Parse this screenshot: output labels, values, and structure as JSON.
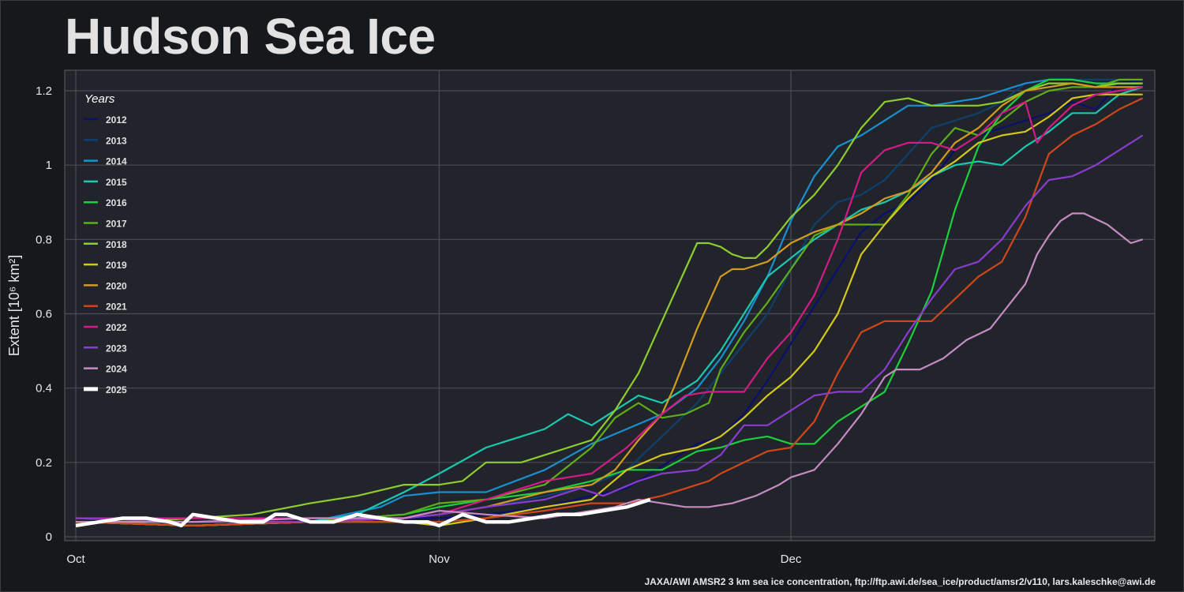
{
  "title": "Hudson Sea Ice",
  "credit": "JAXA/AWI AMSR2 3 km sea ice concentration, ftp://ftp.awi.de/sea_ice/product/amsr2/v110, lars.kaleschke@awi.de",
  "colors": {
    "background": "#16191c",
    "plot_background": "#21252b",
    "grid": "#4a4d52"
  },
  "chart_data": {
    "type": "line",
    "title": "Hudson Sea Ice",
    "xlabel": "",
    "ylabel": "Extent [10⁶ km²]",
    "x_unit": "day index (0 = Oct 1)",
    "xlim": [
      -1,
      92
    ],
    "ylim": [
      0,
      1.25
    ],
    "x_ticks": [
      {
        "day": 0,
        "label": "Oct"
      },
      {
        "day": 31,
        "label": "Nov"
      },
      {
        "day": 61,
        "label": "Dec"
      }
    ],
    "y_ticks": [
      {
        "value": 0,
        "label": "0"
      },
      {
        "value": 0.2,
        "label": "0.2"
      },
      {
        "value": 0.4,
        "label": "0.4"
      },
      {
        "value": 0.6,
        "label": "0.6"
      },
      {
        "value": 0.8,
        "label": "0.8"
      },
      {
        "value": 1.0,
        "label": "1"
      },
      {
        "value": 1.2,
        "label": "1.2"
      }
    ],
    "grid": true,
    "legend": {
      "title": "Years",
      "position": "top-left"
    },
    "series": [
      {
        "name": "2012",
        "color": "#0b0f6e",
        "x": [
          0,
          10,
          20,
          28,
          31,
          35,
          40,
          44,
          47,
          50,
          53,
          55,
          57,
          59,
          61,
          63,
          65,
          67,
          69,
          71,
          73,
          75,
          77,
          79,
          81,
          83,
          85,
          87,
          89,
          91
        ],
        "y": [
          0.04,
          0.04,
          0.04,
          0.05,
          0.05,
          0.06,
          0.08,
          0.11,
          0.13,
          0.19,
          0.25,
          0.27,
          0.33,
          0.42,
          0.52,
          0.62,
          0.72,
          0.82,
          0.87,
          0.9,
          0.96,
          1.04,
          1.08,
          1.1,
          1.12,
          1.14,
          1.17,
          1.15,
          1.22,
          1.23
        ]
      },
      {
        "name": "2013",
        "color": "#0f3f6f",
        "x": [
          0,
          10,
          20,
          28,
          31,
          35,
          40,
          44,
          47,
          50,
          53,
          55,
          57,
          59,
          61,
          63,
          65,
          67,
          69,
          71,
          73,
          75,
          77,
          79,
          81,
          83,
          85,
          87,
          89,
          91
        ],
        "y": [
          0.05,
          0.04,
          0.05,
          0.05,
          0.06,
          0.08,
          0.11,
          0.14,
          0.18,
          0.27,
          0.36,
          0.44,
          0.52,
          0.6,
          0.72,
          0.84,
          0.9,
          0.92,
          0.96,
          1.03,
          1.1,
          1.12,
          1.14,
          1.17,
          1.22,
          1.23,
          1.23,
          1.23,
          1.23,
          1.23
        ]
      },
      {
        "name": "2014",
        "color": "#1a8fd0",
        "x": [
          0,
          10,
          20,
          26,
          28,
          31,
          35,
          40,
          44,
          47,
          50,
          53,
          55,
          57,
          59,
          61,
          63,
          65,
          67,
          69,
          71,
          73,
          75,
          77,
          79,
          81,
          83,
          85,
          87,
          89,
          91
        ],
        "y": [
          0.04,
          0.04,
          0.04,
          0.08,
          0.11,
          0.12,
          0.12,
          0.18,
          0.25,
          0.29,
          0.33,
          0.4,
          0.48,
          0.58,
          0.7,
          0.85,
          0.97,
          1.05,
          1.08,
          1.12,
          1.16,
          1.16,
          1.17,
          1.18,
          1.2,
          1.22,
          1.23,
          1.23,
          1.22,
          1.22,
          1.22
        ]
      },
      {
        "name": "2015",
        "color": "#1bc7b0",
        "x": [
          0,
          10,
          20,
          24,
          28,
          31,
          35,
          38,
          40,
          42,
          44,
          46,
          48,
          50,
          53,
          55,
          57,
          59,
          61,
          63,
          65,
          67,
          69,
          71,
          73,
          75,
          77,
          79,
          81,
          83,
          85,
          87,
          89,
          91
        ],
        "y": [
          0.04,
          0.03,
          0.04,
          0.06,
          0.12,
          0.17,
          0.24,
          0.27,
          0.29,
          0.33,
          0.3,
          0.34,
          0.38,
          0.36,
          0.42,
          0.5,
          0.6,
          0.7,
          0.75,
          0.8,
          0.84,
          0.88,
          0.9,
          0.93,
          0.97,
          1.0,
          1.01,
          1.0,
          1.05,
          1.09,
          1.14,
          1.14,
          1.19,
          1.21
        ]
      },
      {
        "name": "2016",
        "color": "#1ad03c",
        "x": [
          0,
          10,
          20,
          28,
          31,
          35,
          40,
          44,
          47,
          50,
          53,
          55,
          57,
          59,
          61,
          63,
          65,
          67,
          69,
          71,
          73,
          75,
          77,
          79,
          81,
          83,
          85,
          87,
          89,
          91
        ],
        "y": [
          0.04,
          0.03,
          0.04,
          0.06,
          0.08,
          0.1,
          0.12,
          0.15,
          0.18,
          0.18,
          0.23,
          0.24,
          0.26,
          0.27,
          0.25,
          0.25,
          0.31,
          0.35,
          0.39,
          0.52,
          0.66,
          0.88,
          1.05,
          1.14,
          1.2,
          1.23,
          1.23,
          1.22,
          1.22,
          1.22
        ]
      },
      {
        "name": "2017",
        "color": "#5fae18",
        "x": [
          0,
          10,
          20,
          28,
          31,
          35,
          40,
          44,
          46,
          48,
          50,
          52,
          54,
          55,
          57,
          59,
          61,
          63,
          65,
          67,
          69,
          71,
          73,
          75,
          77,
          79,
          81,
          83,
          85,
          87,
          89,
          91
        ],
        "y": [
          0.04,
          0.04,
          0.04,
          0.06,
          0.09,
          0.1,
          0.14,
          0.24,
          0.32,
          0.36,
          0.32,
          0.33,
          0.36,
          0.45,
          0.55,
          0.63,
          0.72,
          0.81,
          0.84,
          0.84,
          0.84,
          0.92,
          1.03,
          1.1,
          1.08,
          1.12,
          1.17,
          1.2,
          1.21,
          1.21,
          1.23,
          1.23
        ]
      },
      {
        "name": "2018",
        "color": "#8fcc2e",
        "x": [
          0,
          5,
          10,
          15,
          20,
          24,
          28,
          31,
          33,
          35,
          38,
          40,
          42,
          44,
          46,
          48,
          50,
          52,
          53,
          54,
          55,
          56,
          57,
          58,
          59,
          61,
          63,
          65,
          67,
          69,
          71,
          73,
          75,
          77,
          79,
          81,
          83,
          85,
          87,
          89,
          91
        ],
        "y": [
          0.04,
          0.04,
          0.05,
          0.06,
          0.09,
          0.11,
          0.14,
          0.14,
          0.15,
          0.2,
          0.2,
          0.22,
          0.24,
          0.26,
          0.34,
          0.44,
          0.58,
          0.72,
          0.79,
          0.79,
          0.78,
          0.76,
          0.75,
          0.75,
          0.78,
          0.86,
          0.92,
          1.0,
          1.1,
          1.17,
          1.18,
          1.16,
          1.16,
          1.16,
          1.17,
          1.2,
          1.22,
          1.22,
          1.21,
          1.22,
          1.22
        ]
      },
      {
        "name": "2019",
        "color": "#d7c71a",
        "x": [
          0,
          10,
          20,
          28,
          31,
          35,
          40,
          44,
          47,
          50,
          53,
          55,
          57,
          59,
          61,
          63,
          65,
          67,
          69,
          71,
          73,
          75,
          77,
          79,
          81,
          83,
          85,
          87,
          89,
          91
        ],
        "y": [
          0.04,
          0.03,
          0.04,
          0.04,
          0.03,
          0.05,
          0.08,
          0.1,
          0.18,
          0.22,
          0.24,
          0.27,
          0.32,
          0.38,
          0.43,
          0.5,
          0.6,
          0.76,
          0.84,
          0.91,
          0.97,
          1.01,
          1.06,
          1.08,
          1.09,
          1.13,
          1.18,
          1.19,
          1.19,
          1.19
        ]
      },
      {
        "name": "2020",
        "color": "#d39c1e",
        "x": [
          0,
          10,
          20,
          28,
          31,
          35,
          40,
          44,
          46,
          48,
          50,
          51,
          52,
          53,
          54,
          55,
          56,
          57,
          59,
          61,
          63,
          65,
          67,
          69,
          71,
          73,
          75,
          77,
          79,
          81,
          83,
          85,
          87,
          89,
          91
        ],
        "y": [
          0.04,
          0.03,
          0.04,
          0.05,
          0.06,
          0.08,
          0.12,
          0.14,
          0.18,
          0.26,
          0.33,
          0.4,
          0.48,
          0.56,
          0.63,
          0.7,
          0.72,
          0.72,
          0.74,
          0.79,
          0.82,
          0.84,
          0.87,
          0.91,
          0.93,
          0.98,
          1.06,
          1.1,
          1.16,
          1.2,
          1.21,
          1.22,
          1.21,
          1.21,
          1.21
        ]
      },
      {
        "name": "2021",
        "color": "#d2451a",
        "x": [
          0,
          10,
          20,
          28,
          31,
          35,
          40,
          44,
          47,
          50,
          52,
          54,
          55,
          57,
          59,
          61,
          63,
          65,
          67,
          69,
          71,
          73,
          75,
          77,
          79,
          81,
          83,
          85,
          87,
          89,
          91
        ],
        "y": [
          0.04,
          0.03,
          0.04,
          0.04,
          0.04,
          0.05,
          0.07,
          0.09,
          0.09,
          0.11,
          0.13,
          0.15,
          0.17,
          0.2,
          0.23,
          0.24,
          0.31,
          0.44,
          0.55,
          0.58,
          0.58,
          0.58,
          0.64,
          0.7,
          0.74,
          0.86,
          1.03,
          1.08,
          1.11,
          1.15,
          1.18
        ]
      },
      {
        "name": "2022",
        "color": "#d21b86",
        "x": [
          0,
          10,
          20,
          28,
          31,
          35,
          40,
          44,
          47,
          50,
          52,
          54,
          55,
          57,
          59,
          61,
          63,
          65,
          67,
          69,
          71,
          73,
          75,
          77,
          79,
          81,
          82,
          83,
          85,
          87,
          89,
          91
        ],
        "y": [
          0.05,
          0.05,
          0.05,
          0.05,
          0.06,
          0.1,
          0.15,
          0.17,
          0.24,
          0.33,
          0.38,
          0.39,
          0.39,
          0.39,
          0.48,
          0.55,
          0.65,
          0.8,
          0.98,
          1.04,
          1.06,
          1.06,
          1.04,
          1.08,
          1.14,
          1.17,
          1.06,
          1.1,
          1.16,
          1.19,
          1.2,
          1.21
        ]
      },
      {
        "name": "2023",
        "color": "#8a3bd0",
        "x": [
          0,
          10,
          20,
          28,
          31,
          35,
          40,
          43,
          45,
          48,
          50,
          53,
          55,
          57,
          59,
          61,
          63,
          65,
          67,
          69,
          71,
          73,
          75,
          77,
          79,
          81,
          83,
          85,
          87,
          89,
          91
        ],
        "y": [
          0.05,
          0.04,
          0.04,
          0.05,
          0.06,
          0.08,
          0.1,
          0.13,
          0.11,
          0.15,
          0.17,
          0.18,
          0.22,
          0.3,
          0.3,
          0.34,
          0.38,
          0.39,
          0.39,
          0.45,
          0.55,
          0.64,
          0.72,
          0.74,
          0.8,
          0.89,
          0.96,
          0.97,
          1.0,
          1.04,
          1.08
        ]
      },
      {
        "name": "2024",
        "color": "#c88ac2",
        "x": [
          0,
          10,
          20,
          28,
          31,
          35,
          40,
          44,
          46,
          48,
          50,
          52,
          54,
          56,
          58,
          60,
          61,
          63,
          65,
          67,
          69,
          70,
          72,
          74,
          76,
          78,
          79,
          81,
          82,
          83,
          84,
          85,
          86,
          88,
          90,
          91
        ],
        "y": [
          0.04,
          0.04,
          0.05,
          0.05,
          0.07,
          0.06,
          0.05,
          0.07,
          0.08,
          0.1,
          0.09,
          0.08,
          0.08,
          0.09,
          0.11,
          0.14,
          0.16,
          0.18,
          0.25,
          0.33,
          0.43,
          0.45,
          0.45,
          0.48,
          0.53,
          0.56,
          0.6,
          0.68,
          0.76,
          0.81,
          0.85,
          0.87,
          0.87,
          0.84,
          0.79,
          0.8
        ]
      },
      {
        "name": "2025",
        "color": "#ffffff",
        "x": [
          0,
          2,
          4,
          6,
          8,
          9,
          10,
          12,
          14,
          16,
          17,
          18,
          19,
          20,
          22,
          24,
          26,
          28,
          30,
          31,
          33,
          35,
          37,
          39,
          41,
          43,
          45,
          47,
          49
        ],
        "y": [
          0.03,
          0.04,
          0.05,
          0.05,
          0.04,
          0.03,
          0.06,
          0.05,
          0.04,
          0.04,
          0.06,
          0.06,
          0.05,
          0.04,
          0.04,
          0.06,
          0.05,
          0.04,
          0.04,
          0.03,
          0.06,
          0.04,
          0.04,
          0.05,
          0.06,
          0.06,
          0.07,
          0.08,
          0.1
        ]
      }
    ]
  }
}
